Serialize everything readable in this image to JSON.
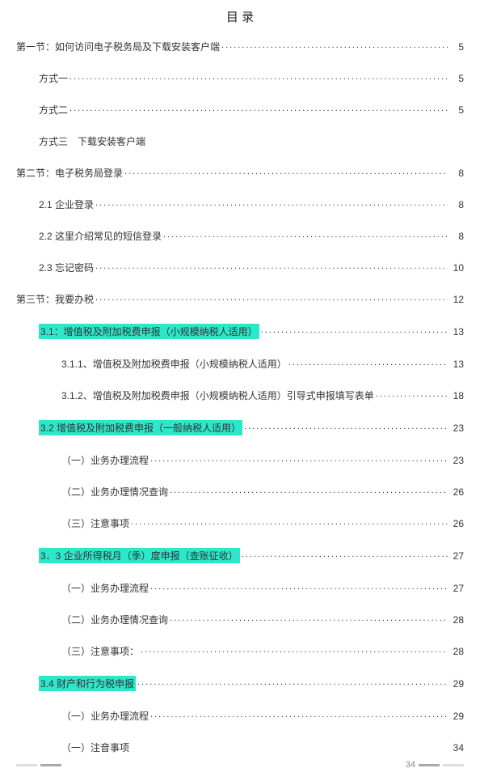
{
  "title": "目 录",
  "page_number": "34",
  "highlight_color": "#2ee6c9",
  "text_color": "#333333",
  "entries": [
    {
      "label": "第一节：如何访问电子税务局及下载安装客户端",
      "page": "5",
      "indent": 0,
      "highlighted": false,
      "dots": true
    },
    {
      "label": "方式一",
      "page": "5",
      "indent": 1,
      "highlighted": false,
      "dots": true
    },
    {
      "label": "方式二",
      "page": "5",
      "indent": 1,
      "highlighted": false,
      "dots": true
    },
    {
      "label": "方式三　下载安装客户端",
      "page": "",
      "indent": 1,
      "highlighted": false,
      "dots": false
    },
    {
      "label": "第二节：电子税务局登录",
      "page": "8",
      "indent": 0,
      "highlighted": false,
      "dots": true
    },
    {
      "label": "2.1 企业登录",
      "page": "8",
      "indent": 1,
      "highlighted": false,
      "dots": true
    },
    {
      "label": "2.2 这里介绍常见的短信登录",
      "page": "8",
      "indent": 1,
      "highlighted": false,
      "dots": true
    },
    {
      "label": "2.3 忘记密码",
      "page": "10",
      "indent": 1,
      "highlighted": false,
      "dots": true
    },
    {
      "label": "第三节：我要办税",
      "page": "12",
      "indent": 0,
      "highlighted": false,
      "dots": true
    },
    {
      "label": "3.1：增值税及附加税费申报（小规模纳税人适用）",
      "page": "13",
      "indent": 1,
      "highlighted": true,
      "dots": true
    },
    {
      "label": "3.1.1、增值税及附加税费申报（小规模纳税人适用）",
      "page": "13",
      "indent": 2,
      "highlighted": false,
      "dots": true
    },
    {
      "label": "3.1.2、增值税及附加税费申报（小规模纳税人适用）引导式申报填写表单",
      "page": "18",
      "indent": 2,
      "highlighted": false,
      "dots": true
    },
    {
      "label": "3.2 增值税及附加税费申报（一般纳税人适用）",
      "page": "23",
      "indent": 1,
      "highlighted": true,
      "dots": true
    },
    {
      "label": "（一）业务办理流程",
      "page": "23",
      "indent": 2,
      "highlighted": false,
      "dots": true
    },
    {
      "label": "（二）业务办理情况查询",
      "page": "26",
      "indent": 2,
      "highlighted": false,
      "dots": true
    },
    {
      "label": "（三）注意事项",
      "page": "26",
      "indent": 2,
      "highlighted": false,
      "dots": true
    },
    {
      "label": "3．3 企业所得税月（季）度申报（查账征收）",
      "page": "27",
      "indent": 1,
      "highlighted": true,
      "dots": true
    },
    {
      "label": "（一）业务办理流程",
      "page": "27",
      "indent": 2,
      "highlighted": false,
      "dots": true
    },
    {
      "label": "（二）业务办理情况查询",
      "page": "28",
      "indent": 2,
      "highlighted": false,
      "dots": true
    },
    {
      "label": "（三）注意事项：",
      "page": "28",
      "indent": 2,
      "highlighted": false,
      "dots": true
    },
    {
      "label": "3.4 财产和行为税申报",
      "page": "29",
      "indent": 1,
      "highlighted": true,
      "dots": true
    },
    {
      "label": "（一）业务办理流程",
      "page": "29",
      "indent": 2,
      "highlighted": false,
      "dots": true
    },
    {
      "label": "（一）注音事项",
      "page": "34",
      "indent": 2,
      "highlighted": false,
      "dots": false
    }
  ]
}
